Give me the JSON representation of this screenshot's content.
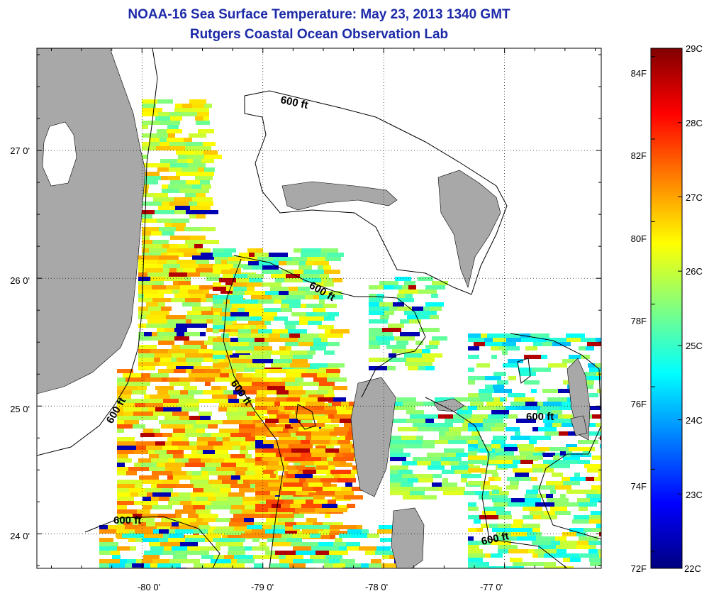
{
  "title": "NOAA-16 Sea Surface Temperature:  May 23, 2013 1340 GMT",
  "subtitle": "Rutgers Coastal Ocean Observation Lab",
  "map": {
    "x_ticks": [
      {
        "lon": -80,
        "label": "-80 0'"
      },
      {
        "lon": -79,
        "label": "-79 0'"
      },
      {
        "lon": -78,
        "label": "-78 0'"
      },
      {
        "lon": -77,
        "label": "-77 0'"
      }
    ],
    "y_ticks": [
      {
        "lat": 27,
        "label": "27 0'"
      },
      {
        "lat": 26,
        "label": "26 0'"
      },
      {
        "lat": 25,
        "label": "25 0'"
      },
      {
        "lat": 24,
        "label": "24 0'"
      }
    ],
    "lon_range": [
      -80.87,
      -76.2
    ],
    "lat_range": [
      23.73,
      27.8
    ],
    "grid": true,
    "land_color": "#a8a8a8",
    "contour_labels": [
      "600 ft",
      "600 ft",
      "600 ft",
      "600 ft",
      "600 ft",
      "600 ft"
    ]
  },
  "colorbar": {
    "range_c": [
      22,
      29
    ],
    "celsius_labels": [
      "29C",
      "28C",
      "27C",
      "26C",
      "25C",
      "24C",
      "23C",
      "22C"
    ],
    "fahrenheit_labels": [
      "84F",
      "82F",
      "80F",
      "78F",
      "76F",
      "74F",
      "72F"
    ],
    "fahrenheit_values": [
      84,
      82,
      80,
      78,
      76,
      74,
      72
    ]
  }
}
